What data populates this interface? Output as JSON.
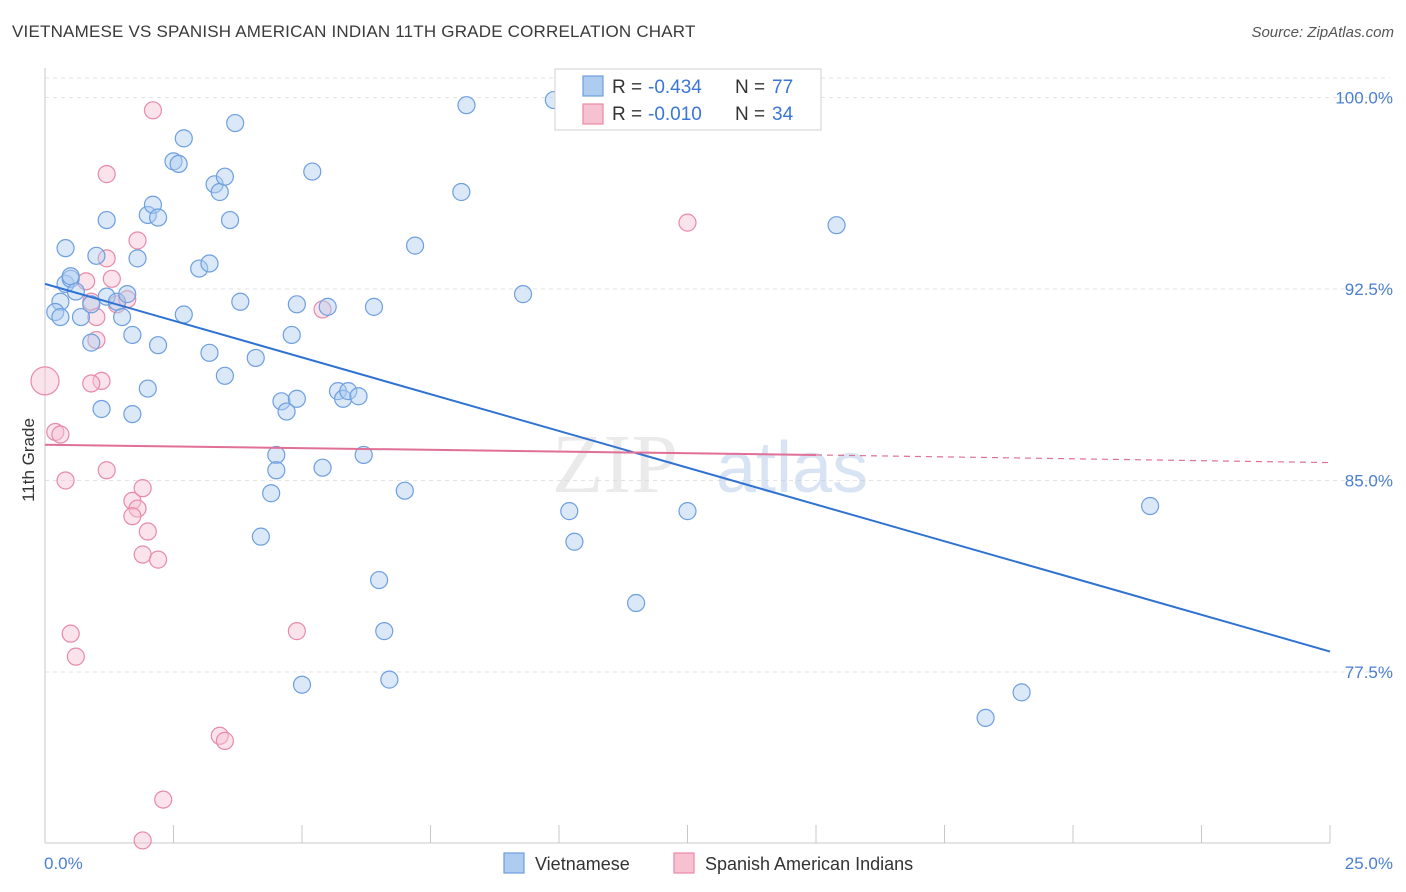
{
  "header": {
    "title": "VIETNAMESE VS SPANISH AMERICAN INDIAN 11TH GRADE CORRELATION CHART",
    "source": "Source: ZipAtlas.com"
  },
  "watermark": {
    "zip": "ZIP",
    "atlas": "atlas"
  },
  "colors": {
    "blue_fill": "#aecbf0",
    "blue_stroke": "#6d9fe0",
    "blue_line": "#2f72d2",
    "pink_fill": "#f6c2d2",
    "pink_stroke": "#e88aa8",
    "pink_line": "#e07097",
    "tick_label": "#4a7fd0",
    "grid": "#e3e3e3"
  },
  "legend": {
    "entries": [
      {
        "r_label": "R =",
        "r_value": "-0.434",
        "n_label": "N =",
        "n_value": "77"
      },
      {
        "r_label": "R =",
        "r_value": "-0.010",
        "n_label": "N =",
        "n_value": "34"
      }
    ]
  },
  "bottom_legend": [
    "Vietnamese",
    "Spanish American Indians"
  ],
  "chart_data": {
    "type": "scatter",
    "title": "VIETNAMESE VS SPANISH AMERICAN INDIAN 11TH GRADE CORRELATION CHART",
    "xlabel": "",
    "ylabel": "11th Grade",
    "xlim": [
      0,
      25
    ],
    "ylim": [
      70.8,
      101.0
    ],
    "x_tick_labels": [
      "0.0%",
      "25.0%"
    ],
    "y_ticks": [
      100.0,
      92.5,
      85.0,
      77.5
    ],
    "y_tick_labels": [
      "100.0%",
      "92.5%",
      "85.0%",
      "77.5%"
    ],
    "grid": true,
    "legend_position": "top-center",
    "series": [
      {
        "name": "Vietnamese",
        "r": -0.434,
        "n": 77,
        "trend": {
          "x": [
            0.0,
            25.0
          ],
          "y": [
            92.7,
            78.3
          ]
        },
        "points": [
          [
            0.3,
            92.0
          ],
          [
            0.2,
            91.6
          ],
          [
            0.3,
            91.4
          ],
          [
            0.4,
            92.7
          ],
          [
            0.5,
            92.9
          ],
          [
            0.6,
            92.4
          ],
          [
            0.5,
            93.0
          ],
          [
            0.4,
            94.1
          ],
          [
            0.7,
            91.4
          ],
          [
            0.9,
            91.9
          ],
          [
            1.2,
            92.2
          ],
          [
            1.4,
            92.0
          ],
          [
            1.5,
            91.4
          ],
          [
            1.6,
            92.3
          ],
          [
            1.7,
            90.7
          ],
          [
            0.9,
            90.4
          ],
          [
            1.2,
            95.2
          ],
          [
            1.8,
            93.7
          ],
          [
            2.0,
            95.4
          ],
          [
            2.1,
            95.8
          ],
          [
            2.2,
            95.3
          ],
          [
            2.2,
            90.3
          ],
          [
            2.0,
            88.6
          ],
          [
            1.7,
            87.6
          ],
          [
            1.1,
            87.8
          ],
          [
            2.5,
            97.5
          ],
          [
            2.6,
            97.4
          ],
          [
            2.7,
            98.4
          ],
          [
            2.7,
            91.5
          ],
          [
            3.0,
            93.3
          ],
          [
            3.2,
            93.5
          ],
          [
            3.3,
            96.6
          ],
          [
            3.4,
            96.3
          ],
          [
            3.5,
            96.9
          ],
          [
            3.6,
            95.2
          ],
          [
            3.7,
            99.0
          ],
          [
            3.8,
            92.0
          ],
          [
            3.2,
            90.0
          ],
          [
            3.5,
            89.1
          ],
          [
            4.1,
            89.8
          ],
          [
            4.2,
            82.8
          ],
          [
            4.4,
            84.5
          ],
          [
            4.5,
            86.0
          ],
          [
            4.5,
            85.4
          ],
          [
            4.6,
            88.1
          ],
          [
            4.8,
            90.7
          ],
          [
            5.0,
            77.0
          ],
          [
            4.9,
            91.9
          ],
          [
            4.7,
            87.7
          ],
          [
            4.9,
            88.2
          ],
          [
            5.2,
            97.1
          ],
          [
            5.4,
            85.5
          ],
          [
            5.5,
            91.8
          ],
          [
            5.7,
            88.5
          ],
          [
            5.8,
            88.2
          ],
          [
            5.9,
            88.5
          ],
          [
            6.1,
            88.3
          ],
          [
            6.4,
            91.8
          ],
          [
            6.2,
            86.0
          ],
          [
            6.5,
            81.1
          ],
          [
            6.6,
            79.1
          ],
          [
            6.7,
            77.2
          ],
          [
            7.0,
            84.6
          ],
          [
            7.2,
            94.2
          ],
          [
            8.1,
            96.3
          ],
          [
            8.2,
            99.7
          ],
          [
            9.3,
            92.3
          ],
          [
            9.9,
            99.9
          ],
          [
            10.2,
            83.8
          ],
          [
            10.3,
            82.6
          ],
          [
            11.5,
            80.2
          ],
          [
            12.5,
            83.8
          ],
          [
            15.4,
            95.0
          ],
          [
            19.0,
            76.7
          ],
          [
            18.3,
            75.7
          ],
          [
            21.5,
            84.0
          ],
          [
            1.0,
            93.8
          ]
        ]
      },
      {
        "name": "Spanish American Indians",
        "r": -0.01,
        "n": 34,
        "trend": {
          "x": [
            0.0,
            15.0
          ],
          "y": [
            86.4,
            86.0
          ]
        },
        "trend_dashed": {
          "x": [
            15.0,
            25.0
          ],
          "y": [
            86.0,
            85.7
          ]
        },
        "points": [
          [
            0.0,
            88.9
          ],
          [
            0.2,
            86.9
          ],
          [
            0.3,
            86.8
          ],
          [
            0.4,
            85.0
          ],
          [
            0.5,
            79.0
          ],
          [
            0.6,
            78.1
          ],
          [
            0.8,
            92.8
          ],
          [
            0.9,
            92.0
          ],
          [
            1.0,
            91.4
          ],
          [
            1.1,
            88.9
          ],
          [
            1.2,
            85.4
          ],
          [
            1.3,
            92.9
          ],
          [
            1.0,
            90.5
          ],
          [
            1.2,
            93.7
          ],
          [
            1.4,
            91.9
          ],
          [
            1.6,
            92.1
          ],
          [
            1.8,
            94.4
          ],
          [
            1.2,
            97.0
          ],
          [
            1.7,
            84.2
          ],
          [
            1.8,
            83.9
          ],
          [
            1.7,
            83.6
          ],
          [
            1.9,
            84.7
          ],
          [
            1.9,
            82.1
          ],
          [
            2.0,
            83.0
          ],
          [
            2.2,
            81.9
          ],
          [
            2.3,
            72.5
          ],
          [
            1.9,
            70.9
          ],
          [
            2.1,
            99.5
          ],
          [
            3.4,
            75.0
          ],
          [
            3.5,
            74.8
          ],
          [
            4.9,
            79.1
          ],
          [
            5.4,
            91.7
          ],
          [
            12.5,
            95.1
          ],
          [
            0.9,
            88.8
          ]
        ]
      }
    ]
  }
}
